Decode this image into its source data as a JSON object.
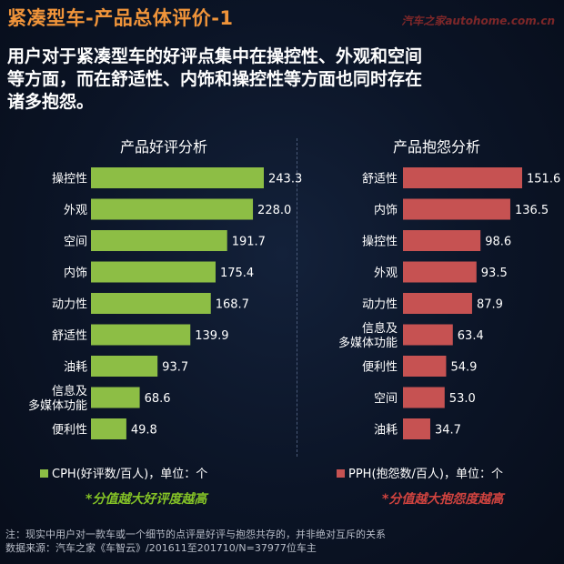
{
  "header": {
    "title": "紧凑型车-产品总体评价-1",
    "watermark": "汽车之家autohome.com.cn",
    "headline_line1": "用户对于紧凑型车的好评点集中在操控性、外观和空间",
    "headline_line2": "等方面，而在舒适性、内饰和操控性等方面也同时存在",
    "headline_line3": "诸多抱怨。"
  },
  "colors": {
    "positive": "#8dbe45",
    "negative": "#c65252",
    "title_accent": "#f0943a",
    "positive_note": "#84c226",
    "negative_note": "#d0433f"
  },
  "chart_data": [
    {
      "type": "bar",
      "orientation": "horizontal",
      "title": "产品好评分析",
      "categories": [
        "操控性",
        "外观",
        "空间",
        "内饰",
        "动力性",
        "舒适性",
        "油耗",
        "信息及多媒体功能",
        "便利性"
      ],
      "category_lines": [
        [
          "操控性"
        ],
        [
          "外观"
        ],
        [
          "空间"
        ],
        [
          "内饰"
        ],
        [
          "动力性"
        ],
        [
          "舒适性"
        ],
        [
          "油耗"
        ],
        [
          "信息及",
          "多媒体功能"
        ],
        [
          "便利性"
        ]
      ],
      "values": [
        243.3,
        228.0,
        191.7,
        175.4,
        168.7,
        139.9,
        93.7,
        68.6,
        49.8
      ],
      "value_labels": [
        "243.3",
        "228.0",
        "191.7",
        "175.4",
        "168.7",
        "139.9",
        "93.7",
        "68.6",
        "49.8"
      ],
      "series_name": "CPH(好评数/百人)，单位：个",
      "note": "*分值越大好评度越高",
      "grid": false
    },
    {
      "type": "bar",
      "orientation": "horizontal",
      "title": "产品抱怨分析",
      "categories": [
        "舒适性",
        "内饰",
        "操控性",
        "外观",
        "动力性",
        "信息及多媒体功能",
        "便利性",
        "空间",
        "油耗"
      ],
      "category_lines": [
        [
          "舒适性"
        ],
        [
          "内饰"
        ],
        [
          "操控性"
        ],
        [
          "外观"
        ],
        [
          "动力性"
        ],
        [
          "信息及",
          "多媒体功能"
        ],
        [
          "便利性"
        ],
        [
          "空间"
        ],
        [
          "油耗"
        ]
      ],
      "values": [
        151.6,
        136.5,
        98.6,
        93.5,
        87.9,
        63.4,
        54.9,
        53.0,
        34.7
      ],
      "value_labels": [
        "151.6",
        "136.5",
        "98.6",
        "93.5",
        "87.9",
        "63.4",
        "54.9",
        "53.0",
        "34.7"
      ],
      "series_name": "PPH(抱怨数/百人)，单位：个",
      "note": "*分值越大抱怨度越高",
      "grid": false
    }
  ],
  "footer": {
    "line1": "注：现实中用户对一款车或一个细节的点评是好评与抱怨共存的，并非绝对互斥的关系",
    "line2": "数据来源：汽车之家《车智云》/201611至201710/N=37977位车主"
  }
}
